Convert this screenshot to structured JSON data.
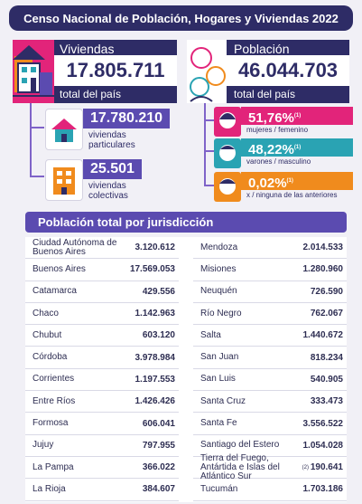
{
  "header": {
    "title": "Censo Nacional de Población, Hogares y Viviendas 2022"
  },
  "viviendas": {
    "label": "Viviendas",
    "value": "17.805.711",
    "sub": "total del país",
    "particulares": {
      "value": "17.780.210",
      "line1": "viviendas",
      "line2": "particulares"
    },
    "colectivas": {
      "value": "25.501",
      "line1": "viviendas",
      "line2": "colectivas"
    }
  },
  "poblacion": {
    "label": "Población",
    "value": "46.044.703",
    "sub": "total del país",
    "mujeres": {
      "value": "51,76%",
      "sup": "(1)",
      "label": "mujeres / femenino",
      "color": "#e2247a"
    },
    "varones": {
      "value": "48,22%",
      "sup": "(1)",
      "label": "varones / masculino",
      "color": "#2aa3b3"
    },
    "otros": {
      "value": "0,02%",
      "sup": "(1)",
      "label": "x / ninguna de las anteriores",
      "color": "#f08b1d"
    }
  },
  "colors": {
    "navy": "#2e2c66",
    "purple": "#5b4bb0",
    "magenta": "#e2247a",
    "teal": "#2aa3b3",
    "orange": "#f08b1d"
  },
  "table": {
    "title": "Población total por jurisdicción",
    "left": [
      {
        "name": "Ciudad Autónoma de Buenos Aires",
        "value": "3.120.612"
      },
      {
        "name": "Buenos Aires",
        "value": "17.569.053"
      },
      {
        "name": "Catamarca",
        "value": "429.556"
      },
      {
        "name": "Chaco",
        "value": "1.142.963"
      },
      {
        "name": "Chubut",
        "value": "603.120"
      },
      {
        "name": "Córdoba",
        "value": "3.978.984"
      },
      {
        "name": "Corrientes",
        "value": "1.197.553"
      },
      {
        "name": "Entre Ríos",
        "value": "1.426.426"
      },
      {
        "name": "Formosa",
        "value": "606.041"
      },
      {
        "name": "Jujuy",
        "value": "797.955"
      },
      {
        "name": "La Pampa",
        "value": "366.022"
      },
      {
        "name": "La Rioja",
        "value": "384.607"
      }
    ],
    "right": [
      {
        "name": "Mendoza",
        "value": "2.014.533"
      },
      {
        "name": "Misiones",
        "value": "1.280.960"
      },
      {
        "name": "Neuquén",
        "value": "726.590"
      },
      {
        "name": "Río Negro",
        "value": "762.067"
      },
      {
        "name": "Salta",
        "value": "1.440.672"
      },
      {
        "name": "San Juan",
        "value": "818.234"
      },
      {
        "name": "San Luis",
        "value": "540.905"
      },
      {
        "name": "Santa Cruz",
        "value": "333.473"
      },
      {
        "name": "Santa Fe",
        "value": "3.556.522"
      },
      {
        "name": "Santiago del Estero",
        "value": "1.054.028"
      },
      {
        "name": "Tierra del Fuego, Antártida e Islas del Atlántico Sur",
        "sup": "(2)",
        "value": "190.641"
      },
      {
        "name": "Tucumán",
        "value": "1.703.186"
      }
    ]
  }
}
